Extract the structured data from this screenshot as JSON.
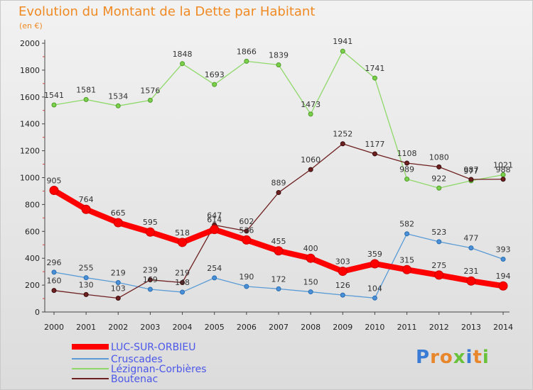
{
  "title": "Evolution du Montant de la Dette par Habitant",
  "subtitle": "(en €)",
  "logo_text": "Proxiti",
  "colors": {
    "title": "#f08a24",
    "luc": "#ff0000",
    "cruscades": "#5a9bd5",
    "lezignan": "#8fd86a",
    "boutenac": "#6e1f1f",
    "legend_text": "#4b57e8"
  },
  "chart_data": {
    "type": "line",
    "x": [
      2000,
      2001,
      2002,
      2003,
      2004,
      2005,
      2006,
      2007,
      2008,
      2009,
      2010,
      2011,
      2012,
      2013,
      2014
    ],
    "ylim": [
      0,
      2000
    ],
    "yticks": [
      0,
      200,
      400,
      600,
      800,
      1000,
      1200,
      1400,
      1600,
      1800,
      2000
    ],
    "grid": false,
    "legend_position": "bottom-left",
    "series": [
      {
        "name": "LUC-SUR-ORBIEU",
        "key": "luc",
        "values": [
          905,
          764,
          665,
          595,
          518,
          614,
          536,
          455,
          400,
          303,
          359,
          315,
          275,
          231,
          194
        ]
      },
      {
        "name": "Cruscades",
        "key": "cruscades",
        "values": [
          296,
          255,
          219,
          169,
          148,
          254,
          190,
          172,
          150,
          126,
          104,
          582,
          523,
          477,
          393
        ]
      },
      {
        "name": "Lézignan-Corbières",
        "key": "lezignan",
        "values": [
          1541,
          1581,
          1534,
          1576,
          1848,
          1693,
          1866,
          1839,
          1473,
          1941,
          1741,
          989,
          922,
          977,
          1021
        ]
      },
      {
        "name": "Boutenac",
        "key": "boutenac",
        "values": [
          160,
          130,
          103,
          239,
          219,
          647,
          602,
          889,
          1060,
          1252,
          1177,
          1108,
          1080,
          987,
          988
        ]
      }
    ]
  }
}
